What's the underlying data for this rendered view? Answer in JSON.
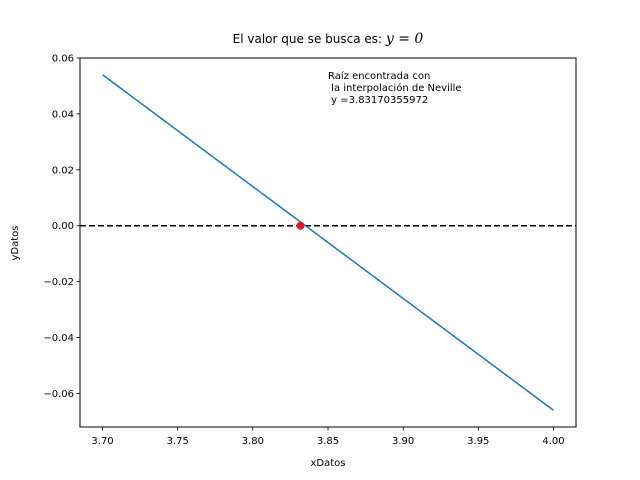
{
  "chart_data": {
    "type": "line",
    "title_prefix": "El valor que se busca es: ",
    "title_math": "y = 0",
    "xlabel": "xDatos",
    "ylabel": "yDatos",
    "xlim": [
      3.685,
      4.015
    ],
    "ylim": [
      -0.072,
      0.06
    ],
    "xticks": [
      3.7,
      3.75,
      3.8,
      3.85,
      3.9,
      3.95,
      4.0
    ],
    "xtick_labels": [
      "3.70",
      "3.75",
      "3.80",
      "3.85",
      "3.90",
      "3.95",
      "4.00"
    ],
    "yticks": [
      0.06,
      0.04,
      0.02,
      0.0,
      -0.02,
      -0.04,
      -0.06
    ],
    "ytick_labels": [
      "0.06",
      "0.04",
      "0.02",
      "0.00",
      "−0.02",
      "−0.04",
      "−0.06"
    ],
    "grid": false,
    "series": [
      {
        "color": "#1f77b4",
        "x": [
          3.7,
          4.0
        ],
        "y": [
          0.054,
          -0.066
        ]
      }
    ],
    "reference_line": {
      "y": 0,
      "color": "#000000",
      "style": "dashed"
    },
    "root_point": {
      "x": 3.83170355972,
      "y": 0,
      "color": "#e31a1c"
    },
    "annotation": [
      "Raíz encontrada con",
      " la interpolación de Neville",
      " y =3.83170355972"
    ]
  }
}
